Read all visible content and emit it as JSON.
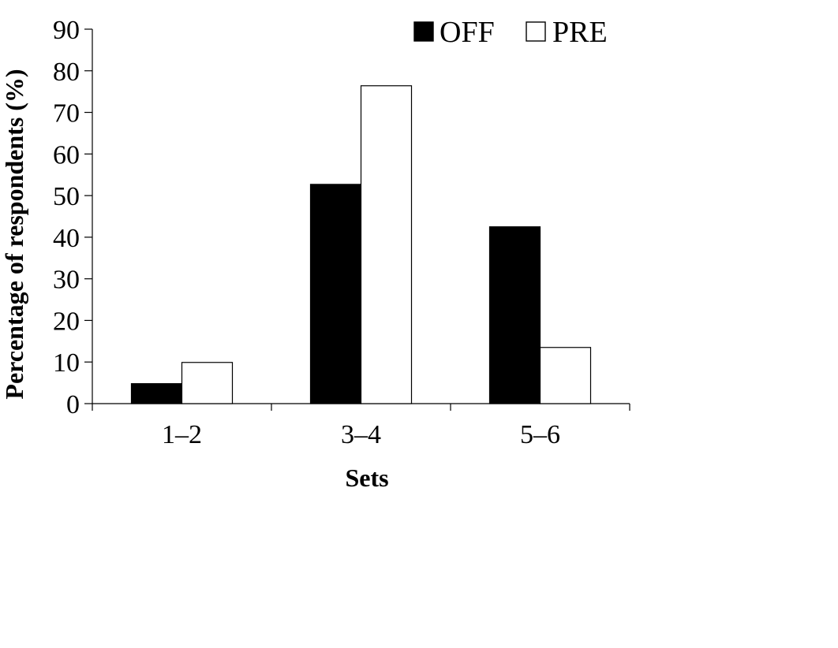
{
  "chart_data": {
    "type": "bar",
    "title": "",
    "xlabel": "Sets",
    "ylabel": "Percentage of respondents (%)",
    "categories": [
      "1–2",
      "3–4",
      "5–6"
    ],
    "series": [
      {
        "name": "OFF",
        "values": [
          4.8,
          52.7,
          42.5
        ],
        "color": "#000000"
      },
      {
        "name": "PRE",
        "values": [
          9.9,
          76.4,
          13.5
        ],
        "color": "#ffffff"
      }
    ],
    "ylim": [
      0,
      90
    ],
    "yticks": [
      0,
      10,
      20,
      30,
      40,
      50,
      60,
      70,
      80,
      90
    ],
    "grid": false,
    "legend_position": "top-right"
  }
}
